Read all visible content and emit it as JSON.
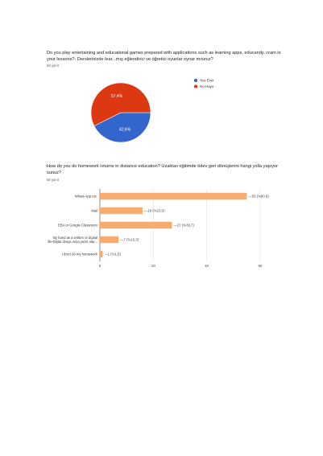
{
  "questions": [
    {
      "title": "Do you play entertaining and educational games prepared with applications such as learning apps, educandy, cram in your lessons?- Derslerinizde lear...mış eğlendirici ve öğretici oyunlar oynar mısınız?",
      "responses": "68 yanıt"
    },
    {
      "title": "How do you do homework returns in distance education? Uzaktan eğitimde ödev geri dönüşlerini hangi yolla yapıyor sunuz?",
      "responses": "68 yanıt"
    }
  ],
  "chart_data": [
    {
      "type": "pie",
      "labels": [
        "Yes-Evet",
        "No-Hayır"
      ],
      "values": [
        42.6,
        57.4
      ],
      "value_labels": [
        "42,6%",
        "57,4%"
      ],
      "colors": [
        "#3366cc",
        "#dc3912"
      ],
      "legend_position": "right"
    },
    {
      "type": "bar",
      "orientation": "horizontal",
      "categories": [
        "Whats App etc.",
        "Mail",
        "EBA or Google Classroom",
        "By hand as a written or digital file-Dijital dosya veya yazılı olar...",
        "I don't do my homework"
      ],
      "category_lines": [
        [
          "Whats App etc."
        ],
        [
          "Mail"
        ],
        [
          "EBA or Google Classroom"
        ],
        [
          "By hand as a written or digital",
          "file-Dijital dosya veya yazılı olar..."
        ],
        [
          "I don't do my homework"
        ]
      ],
      "values": [
        55,
        16,
        27,
        7,
        1
      ],
      "value_labels": [
        "55 (%80,9)",
        "16 (%23,5)",
        "27 (%39,7)",
        "7 (%10,3)",
        "1 (%1,5)"
      ],
      "xlim": [
        0,
        60
      ],
      "xticks": [
        0,
        20,
        40,
        60
      ],
      "bar_color": "#f6ad6f",
      "grid": true
    }
  ]
}
